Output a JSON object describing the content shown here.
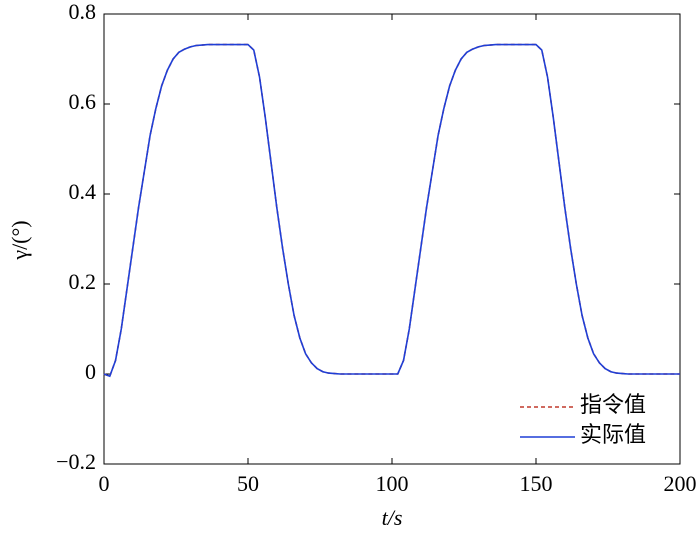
{
  "chart_data": {
    "type": "line",
    "xlabel": "t/s",
    "ylabel": "γ/(°)",
    "x": [
      0,
      2,
      4,
      6,
      8,
      10,
      12,
      14,
      16,
      18,
      20,
      22,
      24,
      26,
      28,
      30,
      32,
      34,
      36,
      38,
      40,
      42,
      44,
      46,
      48,
      50,
      52,
      54,
      56,
      58,
      60,
      62,
      64,
      66,
      68,
      70,
      72,
      74,
      76,
      78,
      80,
      82,
      84,
      86,
      88,
      90,
      92,
      94,
      96,
      98,
      100,
      102,
      104,
      106,
      108,
      110,
      112,
      114,
      116,
      118,
      120,
      122,
      124,
      126,
      128,
      130,
      132,
      134,
      136,
      138,
      140,
      142,
      144,
      146,
      148,
      150,
      152,
      154,
      156,
      158,
      160,
      162,
      164,
      166,
      168,
      170,
      172,
      174,
      176,
      178,
      180,
      182,
      184,
      186,
      188,
      190,
      192,
      194,
      196,
      198,
      200
    ],
    "series": [
      {
        "name": "指令值",
        "color": "#c0392b",
        "dashed": true,
        "values": [
          0,
          -0.005,
          0.03,
          0.1,
          0.19,
          0.28,
          0.37,
          0.45,
          0.53,
          0.59,
          0.64,
          0.675,
          0.7,
          0.715,
          0.722,
          0.727,
          0.73,
          0.731,
          0.732,
          0.732,
          0.732,
          0.732,
          0.732,
          0.732,
          0.732,
          0.732,
          0.72,
          0.66,
          0.57,
          0.47,
          0.37,
          0.28,
          0.2,
          0.13,
          0.08,
          0.045,
          0.025,
          0.012,
          0.005,
          0.002,
          0.001,
          0,
          0,
          0,
          0,
          0,
          0,
          0,
          0,
          0,
          0,
          0,
          0.03,
          0.1,
          0.19,
          0.28,
          0.37,
          0.45,
          0.53,
          0.59,
          0.64,
          0.675,
          0.7,
          0.715,
          0.722,
          0.727,
          0.73,
          0.731,
          0.732,
          0.732,
          0.732,
          0.732,
          0.732,
          0.732,
          0.732,
          0.732,
          0.72,
          0.66,
          0.57,
          0.47,
          0.37,
          0.28,
          0.2,
          0.13,
          0.08,
          0.045,
          0.025,
          0.012,
          0.005,
          0.002,
          0.001,
          0,
          0,
          0,
          0,
          0,
          0,
          0,
          0,
          0,
          0
        ]
      },
      {
        "name": "实际值",
        "color": "#1f3fd6",
        "dashed": false,
        "values": [
          0,
          -0.005,
          0.03,
          0.1,
          0.19,
          0.28,
          0.37,
          0.45,
          0.53,
          0.59,
          0.64,
          0.675,
          0.7,
          0.715,
          0.722,
          0.727,
          0.73,
          0.731,
          0.732,
          0.732,
          0.732,
          0.732,
          0.732,
          0.732,
          0.732,
          0.732,
          0.72,
          0.66,
          0.57,
          0.47,
          0.37,
          0.28,
          0.2,
          0.13,
          0.08,
          0.045,
          0.025,
          0.012,
          0.005,
          0.002,
          0.001,
          0,
          0,
          0,
          0,
          0,
          0,
          0,
          0,
          0,
          0,
          0,
          0.03,
          0.1,
          0.19,
          0.28,
          0.37,
          0.45,
          0.53,
          0.59,
          0.64,
          0.675,
          0.7,
          0.715,
          0.722,
          0.727,
          0.73,
          0.731,
          0.732,
          0.732,
          0.732,
          0.732,
          0.732,
          0.732,
          0.732,
          0.732,
          0.72,
          0.66,
          0.57,
          0.47,
          0.37,
          0.28,
          0.2,
          0.13,
          0.08,
          0.045,
          0.025,
          0.012,
          0.005,
          0.002,
          0.001,
          0,
          0,
          0,
          0,
          0,
          0,
          0,
          0,
          0,
          0
        ]
      }
    ],
    "xlim": [
      0,
      200
    ],
    "xticks": [
      0,
      50,
      100,
      150,
      200
    ],
    "ylim": [
      -0.2,
      0.8
    ],
    "yticks": [
      {
        "value": -0.2,
        "label": "−0.2"
      },
      0,
      0.2,
      0.4,
      0.6,
      0.8
    ],
    "legend": "lower right"
  }
}
